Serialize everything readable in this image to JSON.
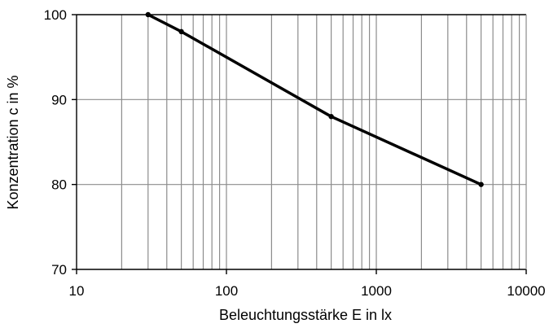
{
  "chart_data": {
    "type": "line",
    "xscale": "log",
    "xlim": [
      10,
      10000
    ],
    "ylim": [
      70,
      100
    ],
    "xticks": [
      "10",
      "100",
      "1000",
      "10000"
    ],
    "yticks": [
      "70",
      "80",
      "90",
      "100"
    ],
    "xlabel": "Beleuchtungsstärke E in lx",
    "ylabel": "Konzentration c in %",
    "grid": true,
    "series": [
      {
        "x": [
          30,
          50,
          500,
          5000
        ],
        "y": [
          100,
          98,
          88,
          80
        ],
        "color": "#000000"
      }
    ]
  }
}
